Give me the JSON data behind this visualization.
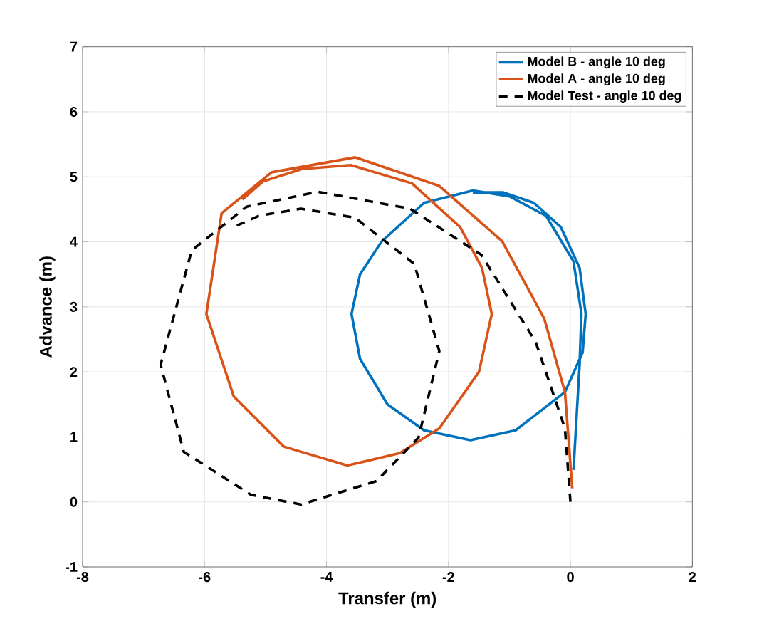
{
  "chart_data": {
    "type": "line",
    "xlabel": "Transfer (m)",
    "ylabel": "Advance (m)",
    "xlim": [
      -8,
      2
    ],
    "ylim": [
      -1,
      7
    ],
    "xticks": [
      -8,
      -6,
      -4,
      -2,
      0,
      2
    ],
    "yticks": [
      -1,
      0,
      1,
      2,
      3,
      4,
      5,
      6,
      7
    ],
    "grid": true,
    "legend": "top right",
    "series": [
      {
        "name": "Model B - angle 10 deg",
        "color": "#0072bd",
        "line_style": "solid",
        "x": [
          0.05,
          0.15,
          0.18,
          0.05,
          -0.4,
          -1.0,
          -1.6,
          -2.4,
          -3.1,
          -3.45,
          -3.59,
          -3.45,
          -3.0,
          -2.4,
          -1.64,
          -0.9,
          -0.09,
          0.2,
          0.25,
          0.15,
          -0.16,
          -0.6,
          -1.1,
          -1.6
        ],
        "values": [
          0.49,
          2.1,
          2.9,
          3.7,
          4.4,
          4.7,
          4.79,
          4.6,
          4.0,
          3.5,
          2.89,
          2.2,
          1.5,
          1.1,
          0.95,
          1.1,
          1.69,
          2.3,
          2.89,
          3.6,
          4.23,
          4.6,
          4.76,
          4.76
        ]
      },
      {
        "name": "Model A - angle 10 deg",
        "color": "#d95319",
        "line_style": "solid",
        "x": [
          0.03,
          -0.09,
          -0.43,
          -1.12,
          -2.15,
          -3.53,
          -4.9,
          -5.72,
          -5.97,
          -5.52,
          -4.7,
          -3.66,
          -2.8,
          -2.15,
          -1.5,
          -1.29,
          -1.45,
          -1.81,
          -2.6,
          -3.6,
          -4.4,
          -5.04,
          -5.38
        ],
        "values": [
          0.21,
          1.69,
          2.82,
          4.01,
          4.86,
          5.3,
          5.07,
          4.44,
          2.89,
          1.62,
          0.85,
          0.56,
          0.75,
          1.13,
          2.0,
          2.89,
          3.6,
          4.23,
          4.9,
          5.18,
          5.12,
          4.93,
          4.65
        ]
      },
      {
        "name": "Model Test - angle 10 deg",
        "color": "#000000",
        "line_style": "dashed",
        "x": [
          0,
          -0.09,
          -0.57,
          -1.46,
          -2.63,
          -4.14,
          -5.31,
          -6.21,
          -6.72,
          -6.34,
          -5.24,
          -4.42,
          -3.18,
          -2.49,
          -2.15,
          -2.56,
          -3.53,
          -4.42,
          -5.11,
          -5.52
        ],
        "values": [
          0,
          1.13,
          2.46,
          3.8,
          4.51,
          4.77,
          4.54,
          3.87,
          2.11,
          0.77,
          0.11,
          -0.04,
          0.32,
          0.99,
          2.32,
          3.66,
          4.37,
          4.51,
          4.4,
          4.23
        ]
      }
    ]
  }
}
